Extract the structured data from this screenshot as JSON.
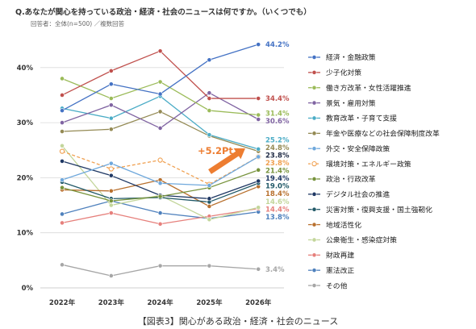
{
  "caption": "【図表3】関心がある政治・経済・社会のニュース",
  "chart_data": {
    "type": "line",
    "title": "Q.あなたが関心を持っている政治・経済・社会のニュースは何ですか。（いくつでも）",
    "subtitle": "回答者：全体(n=500) ／複数回答",
    "xlabel": "",
    "ylabel": "",
    "x": [
      "2022年",
      "2023年",
      "2024年",
      "2025年",
      "2026年"
    ],
    "ylim": [
      0,
      45
    ],
    "y_ticks": [
      {
        "value": 0,
        "label": "0%"
      },
      {
        "value": 10,
        "label": "10%"
      },
      {
        "value": 20,
        "label": "20%"
      },
      {
        "value": 30,
        "label": "30%"
      },
      {
        "value": 40,
        "label": "40%"
      }
    ],
    "grid": true,
    "legend_position": "right",
    "series": [
      {
        "name": "経済・金融政策",
        "color": "#4472c4",
        "values": [
          32.2,
          37.0,
          35.2,
          41.4,
          44.2
        ],
        "label": "44.2%"
      },
      {
        "name": "少子化対策",
        "color": "#c0504d",
        "values": [
          35.0,
          39.4,
          43.0,
          34.4,
          34.4
        ],
        "label": "34.4%"
      },
      {
        "name": "働き方改革・女性活躍推進",
        "color": "#9bbb59",
        "values": [
          38.0,
          34.4,
          37.4,
          32.2,
          31.4
        ],
        "label": "31.4%"
      },
      {
        "name": "景気・雇用対策",
        "color": "#8064a2",
        "values": [
          30.0,
          33.2,
          29.0,
          35.4,
          30.6
        ],
        "label": "30.6%"
      },
      {
        "name": "教育改革・子育て支援",
        "color": "#4bacc6",
        "values": [
          32.6,
          30.8,
          34.8,
          27.8,
          25.2
        ],
        "label": "25.2%"
      },
      {
        "name": "年金や医療などの社会保障制度改革",
        "color": "#948a54",
        "values": [
          28.4,
          28.8,
          32.0,
          27.6,
          24.8
        ],
        "label": "24.8%"
      },
      {
        "name": "外交・安全保障政策",
        "color": "#6fa8dc",
        "values": [
          19.6,
          22.6,
          19.0,
          18.6,
          23.8
        ],
        "label": "23.8%",
        "label_color": "#1f2a44"
      },
      {
        "name": "環境対策・エネルギー政策",
        "color": "#f0a050",
        "values": [
          24.8,
          21.6,
          23.2,
          18.8,
          23.8
        ],
        "label": "23.8%",
        "line_style": "dashed"
      },
      {
        "name": "政治・行政改革",
        "color": "#77933c",
        "values": [
          18.2,
          15.8,
          16.6,
          18.2,
          21.4
        ],
        "label": "21.4%"
      },
      {
        "name": "デジタル社会の推進",
        "color": "#1f3864",
        "values": [
          23.0,
          20.4,
          16.8,
          16.2,
          19.4
        ],
        "label": "19.4%"
      },
      {
        "name": "災害対策・復興支援・国土強靭化",
        "color": "#215968",
        "values": [
          19.2,
          16.2,
          16.4,
          15.6,
          19.0
        ],
        "label": "19.0%"
      },
      {
        "name": "地域活性化",
        "color": "#b8702e",
        "values": [
          17.8,
          17.6,
          19.6,
          14.8,
          18.4
        ],
        "label": "18.4%"
      },
      {
        "name": "公衆衛生・感染症対策",
        "color": "#c3d69b",
        "values": [
          25.8,
          15.0,
          16.8,
          12.4,
          14.6
        ],
        "label": "14.6%"
      },
      {
        "name": "財政再建",
        "color": "#e6807c",
        "values": [
          11.8,
          13.6,
          11.6,
          13.0,
          14.4
        ],
        "label": "14.4%"
      },
      {
        "name": "憲法改正",
        "color": "#4f81bd",
        "values": [
          13.4,
          15.8,
          13.6,
          12.6,
          13.8
        ],
        "label": "13.8%"
      },
      {
        "name": "その他",
        "color": "#a6a6a6",
        "values": [
          4.2,
          2.2,
          4.0,
          4.0,
          3.4
        ],
        "label": "3.4%"
      }
    ],
    "annotation": {
      "text": "+5.2Pt",
      "color": "#ed7d31",
      "series_index": 6
    }
  }
}
